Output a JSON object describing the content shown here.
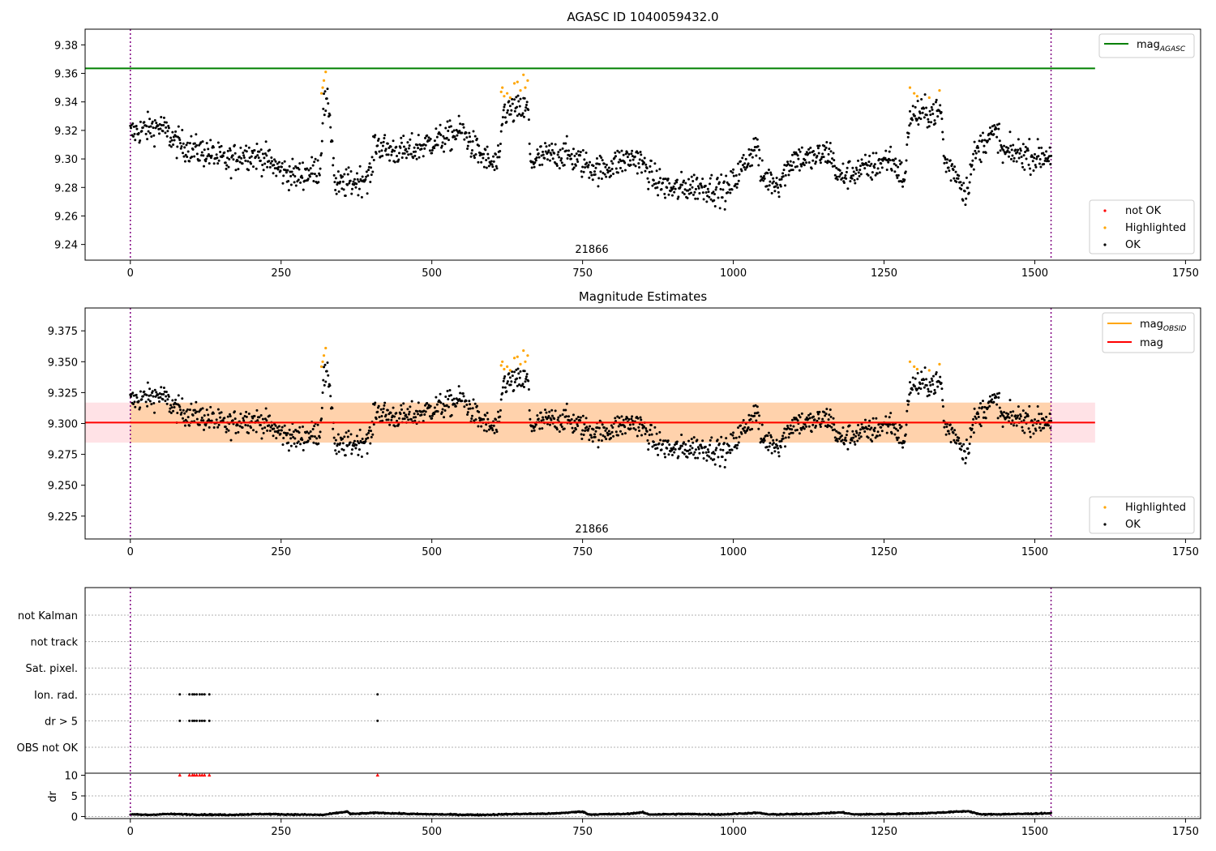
{
  "chart_data": [
    {
      "type": "scatter",
      "title": "AGASC ID 1040059432.0",
      "xlim": [
        -75,
        1775
      ],
      "ylim": [
        9.229,
        9.391
      ],
      "xticks": [
        0,
        250,
        500,
        750,
        1000,
        1250,
        1500,
        1750
      ],
      "yticks": [
        9.24,
        9.26,
        9.28,
        9.3,
        9.32,
        9.34,
        9.36,
        9.38
      ],
      "ytick_labels": [
        "9.24",
        "9.26",
        "9.28",
        "9.30",
        "9.32",
        "9.34",
        "9.36",
        "9.38"
      ],
      "obsid_label": "21866",
      "vlines": [
        0,
        1527
      ],
      "mag_agasc": 9.3635,
      "mag_line_x": [
        -75,
        1600
      ],
      "legend_lines": [
        {
          "name": "mag",
          "sub": "AGASC",
          "color": "#008000"
        }
      ],
      "legend_points": [
        {
          "name": "not OK",
          "color": "#ff0000"
        },
        {
          "name": "Highlighted",
          "color": "#ffa500"
        },
        {
          "name": "OK",
          "color": "#000000"
        }
      ],
      "highlighted_points": [
        [
          317,
          9.346
        ],
        [
          319,
          9.35
        ],
        [
          321,
          9.355
        ],
        [
          324,
          9.361
        ],
        [
          615,
          9.347
        ],
        [
          617,
          9.35
        ],
        [
          620,
          9.344
        ],
        [
          625,
          9.346
        ],
        [
          630,
          9.343
        ],
        [
          637,
          9.353
        ],
        [
          642,
          9.354
        ],
        [
          647,
          9.348
        ],
        [
          652,
          9.359
        ],
        [
          655,
          9.35
        ],
        [
          659,
          9.355
        ],
        [
          1293,
          9.35
        ],
        [
          1300,
          9.346
        ],
        [
          1305,
          9.344
        ],
        [
          1325,
          9.343
        ],
        [
          1342,
          9.348
        ]
      ],
      "ok_trend": [
        [
          0,
          9.318
        ],
        [
          25,
          9.321
        ],
        [
          50,
          9.323
        ],
        [
          75,
          9.312
        ],
        [
          100,
          9.307
        ],
        [
          130,
          9.304
        ],
        [
          160,
          9.298
        ],
        [
          190,
          9.304
        ],
        [
          220,
          9.301
        ],
        [
          250,
          9.292
        ],
        [
          275,
          9.288
        ],
        [
          300,
          9.291
        ],
        [
          315,
          9.293
        ],
        [
          320,
          9.338
        ],
        [
          330,
          9.336
        ],
        [
          340,
          9.28
        ],
        [
          360,
          9.283
        ],
        [
          380,
          9.285
        ],
        [
          400,
          9.29
        ],
        [
          405,
          9.311
        ],
        [
          430,
          9.306
        ],
        [
          460,
          9.305
        ],
        [
          500,
          9.312
        ],
        [
          525,
          9.315
        ],
        [
          550,
          9.32
        ],
        [
          575,
          9.305
        ],
        [
          600,
          9.296
        ],
        [
          612,
          9.297
        ],
        [
          618,
          9.333
        ],
        [
          640,
          9.334
        ],
        [
          660,
          9.335
        ],
        [
          663,
          9.298
        ],
        [
          690,
          9.302
        ],
        [
          720,
          9.304
        ],
        [
          750,
          9.297
        ],
        [
          780,
          9.292
        ],
        [
          810,
          9.298
        ],
        [
          840,
          9.301
        ],
        [
          870,
          9.285
        ],
        [
          900,
          9.278
        ],
        [
          930,
          9.281
        ],
        [
          960,
          9.28
        ],
        [
          990,
          9.277
        ],
        [
          1010,
          9.291
        ],
        [
          1040,
          9.311
        ],
        [
          1045,
          9.288
        ],
        [
          1075,
          9.283
        ],
        [
          1100,
          9.301
        ],
        [
          1130,
          9.3
        ],
        [
          1160,
          9.305
        ],
        [
          1175,
          9.287
        ],
        [
          1200,
          9.291
        ],
        [
          1230,
          9.294
        ],
        [
          1260,
          9.301
        ],
        [
          1285,
          9.285
        ],
        [
          1292,
          9.33
        ],
        [
          1320,
          9.332
        ],
        [
          1345,
          9.333
        ],
        [
          1350,
          9.298
        ],
        [
          1370,
          9.29
        ],
        [
          1385,
          9.276
        ],
        [
          1400,
          9.302
        ],
        [
          1420,
          9.315
        ],
        [
          1440,
          9.318
        ],
        [
          1445,
          9.304
        ],
        [
          1480,
          9.304
        ],
        [
          1500,
          9.301
        ],
        [
          1527,
          9.303
        ]
      ]
    },
    {
      "type": "scatter",
      "title": "Magnitude Estimates",
      "xlim": [
        -75,
        1775
      ],
      "ylim": [
        9.2065,
        9.3935
      ],
      "xticks": [
        0,
        250,
        500,
        750,
        1000,
        1250,
        1500,
        1750
      ],
      "yticks": [
        9.225,
        9.25,
        9.275,
        9.3,
        9.325,
        9.35,
        9.375
      ],
      "ytick_labels": [
        "9.225",
        "9.250",
        "9.275",
        "9.300",
        "9.325",
        "9.350",
        "9.375"
      ],
      "obsid_label": "21866",
      "vlines": [
        0,
        1527
      ],
      "mag": 9.3007,
      "mag_band": [
        9.2845,
        9.3169
      ],
      "mag_line_x": [
        -75,
        1600
      ],
      "mag_obsid": 9.3007,
      "mag_obsid_band": [
        9.2845,
        9.3169
      ],
      "mag_obsid_x": [
        0,
        1527
      ],
      "legend_lines": [
        {
          "name": "mag",
          "sub": "OBSID",
          "color": "#ffa500"
        },
        {
          "name": "mag",
          "sub": "",
          "color": "#ff0000"
        }
      ],
      "legend_points": [
        {
          "name": "Highlighted",
          "color": "#ffa500"
        },
        {
          "name": "OK",
          "color": "#000000"
        }
      ]
    },
    {
      "type": "scatter",
      "xlim": [
        -75,
        1775
      ],
      "flag_rows": [
        "OBS not OK",
        "dr > 5",
        "Ion. rad.",
        "Sat. pixel.",
        "not track",
        "not Kalman"
      ],
      "flag_points": {
        "dr > 5": [
          82,
          98,
          103,
          106,
          110,
          115,
          119,
          123,
          131,
          410
        ],
        "Ion. rad.": [
          82,
          98,
          103,
          106,
          110,
          115,
          119,
          123,
          131,
          410
        ]
      },
      "dr": {
        "ylabel": "dr",
        "ylim": [
          -0.5,
          10.5
        ],
        "yticks": [
          0,
          5,
          10
        ],
        "ytick_labels": [
          "0",
          "5",
          "10"
        ],
        "clipped_points": [
          82,
          98,
          103,
          106,
          110,
          115,
          119,
          123,
          131,
          410
        ],
        "trend": [
          [
            0,
            0.5
          ],
          [
            30,
            0.4
          ],
          [
            60,
            0.6
          ],
          [
            100,
            0.5
          ],
          [
            160,
            0.4
          ],
          [
            220,
            0.6
          ],
          [
            260,
            0.5
          ],
          [
            320,
            0.4
          ],
          [
            360,
            1.2
          ],
          [
            365,
            0.6
          ],
          [
            410,
            0.9
          ],
          [
            470,
            0.6
          ],
          [
            520,
            0.5
          ],
          [
            580,
            0.4
          ],
          [
            640,
            0.6
          ],
          [
            700,
            0.7
          ],
          [
            750,
            1.2
          ],
          [
            760,
            0.5
          ],
          [
            820,
            0.6
          ],
          [
            850,
            1.0
          ],
          [
            860,
            0.5
          ],
          [
            920,
            0.6
          ],
          [
            980,
            0.5
          ],
          [
            1040,
            0.9
          ],
          [
            1060,
            0.5
          ],
          [
            1120,
            0.6
          ],
          [
            1180,
            1.0
          ],
          [
            1200,
            0.5
          ],
          [
            1260,
            0.6
          ],
          [
            1320,
            0.8
          ],
          [
            1390,
            1.3
          ],
          [
            1410,
            0.5
          ],
          [
            1470,
            0.6
          ],
          [
            1527,
            0.8
          ]
        ]
      },
      "vlines": [
        0,
        1527
      ]
    }
  ]
}
